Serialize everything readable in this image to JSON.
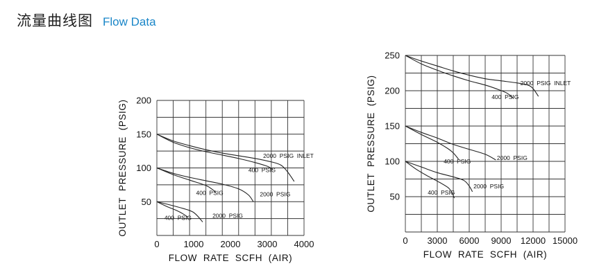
{
  "header": {
    "title_cn": "流量曲线图",
    "title_en": "Flow Data"
  },
  "colors": {
    "accent": "#1a86c8",
    "curve": "#222222",
    "grid": "#333333"
  },
  "chart_data": [
    {
      "type": "line",
      "xlabel": "FLOW RATE SCFH (AIR)",
      "ylabel": "OUTLET PRESSURE (PSIG)",
      "xlim": [
        0,
        4500
      ],
      "ylim": [
        0,
        200
      ],
      "x_ticks": [
        "0",
        "1000",
        "2000",
        "3000",
        "4000"
      ],
      "y_ticks": [
        "50",
        "100",
        "150",
        "200"
      ],
      "grid_x_step": 500,
      "grid_y_step": 25,
      "series": [
        {
          "name": "2000 PSIG INLET",
          "x": [
            0,
            500,
            1000,
            1500,
            2000,
            2500,
            3000,
            3500,
            3800,
            4000,
            4200
          ],
          "y": [
            150,
            140,
            133,
            127,
            122,
            118,
            114,
            109,
            104,
            94,
            80
          ]
        },
        {
          "name": "400 PSIG",
          "x": [
            0,
            500,
            1000,
            1500,
            2000,
            2500,
            3000,
            3400,
            3550
          ],
          "y": [
            150,
            138,
            130,
            124,
            119,
            114,
            108,
            102,
            97
          ]
        },
        {
          "name": "2000 PSIG",
          "x": [
            0,
            500,
            1000,
            1500,
            2000,
            2500,
            2800,
            2950
          ],
          "y": [
            100,
            92,
            86,
            81,
            76,
            69,
            60,
            50
          ]
        },
        {
          "name": "400 PSIG",
          "x": [
            0,
            500,
            1000,
            1500,
            1700,
            1800
          ],
          "y": [
            100,
            90,
            82,
            74,
            68,
            64
          ]
        },
        {
          "name": "2000 PSIG",
          "x": [
            0,
            500,
            1000,
            1200,
            1400
          ],
          "y": [
            50,
            44,
            37,
            31,
            20
          ]
        },
        {
          "name": "400 PSIG",
          "x": [
            0,
            300,
            600,
            800,
            950
          ],
          "y": [
            50,
            43,
            37,
            32,
            27
          ]
        }
      ],
      "labels": [
        {
          "text": "2000 PSIG INLET",
          "x": 3250,
          "y": 115
        },
        {
          "text": "400 PSIG",
          "x": 2800,
          "y": 94
        },
        {
          "text": "2000 PSIG",
          "x": 3150,
          "y": 58
        },
        {
          "text": "400 PSIG",
          "x": 1200,
          "y": 60
        },
        {
          "text": "2000 PSIG",
          "x": 1700,
          "y": 26
        },
        {
          "text": "400 PSIG",
          "x": 230,
          "y": 23
        }
      ]
    },
    {
      "type": "line",
      "xlabel": "FLOW RATE SCFH (AIR)",
      "ylabel": "OUTLET PRESSURE (PSIG)",
      "xlim": [
        0,
        15000
      ],
      "ylim": [
        0,
        250
      ],
      "x_ticks": [
        "0",
        "3000",
        "6000",
        "9000",
        "12000",
        "15000"
      ],
      "y_ticks": [
        "50",
        "100",
        "150",
        "200",
        "250"
      ],
      "grid_x_step": 1500,
      "grid_y_step": 25,
      "series": [
        {
          "name": "2000 PSIG INLET",
          "x": [
            0,
            1500,
            3000,
            4500,
            6000,
            7500,
            9000,
            10500,
            11500,
            12000,
            12500
          ],
          "y": [
            250,
            242,
            235,
            228,
            222,
            217,
            214,
            211,
            208,
            203,
            192
          ]
        },
        {
          "name": "400 PSIG",
          "x": [
            0,
            1500,
            3000,
            4500,
            6000,
            7500,
            8500,
            9500,
            10100
          ],
          "y": [
            250,
            238,
            229,
            221,
            214,
            208,
            203,
            197,
            190
          ]
        },
        {
          "name": "2000 PSIG",
          "x": [
            0,
            1500,
            3000,
            4500,
            6000,
            7500,
            8500
          ],
          "y": [
            150,
            141,
            133,
            124,
            117,
            110,
            102
          ]
        },
        {
          "name": "400 PSIG",
          "x": [
            0,
            1500,
            3000,
            4000,
            4500,
            5000
          ],
          "y": [
            150,
            138,
            127,
            118,
            112,
            103
          ]
        },
        {
          "name": "2000 PSIG",
          "x": [
            0,
            1500,
            3000,
            4500,
            5500,
            6000,
            6300
          ],
          "y": [
            100,
            92,
            84,
            78,
            73,
            65,
            57
          ]
        },
        {
          "name": "400 PSIG",
          "x": [
            0,
            1000,
            2000,
            3000,
            4000,
            4400,
            4600
          ],
          "y": [
            100,
            89,
            80,
            72,
            63,
            55,
            48
          ]
        }
      ],
      "labels": [
        {
          "text": "2000 PSIG INLET",
          "x": 10800,
          "y": 208
        },
        {
          "text": "400 PSIG",
          "x": 8100,
          "y": 188
        },
        {
          "text": "2000 PSIG",
          "x": 8600,
          "y": 102
        },
        {
          "text": "400 PSIG",
          "x": 3600,
          "y": 97
        },
        {
          "text": "2000 PSIG",
          "x": 6400,
          "y": 62
        },
        {
          "text": "400 PSIG",
          "x": 2100,
          "y": 53
        }
      ]
    }
  ]
}
